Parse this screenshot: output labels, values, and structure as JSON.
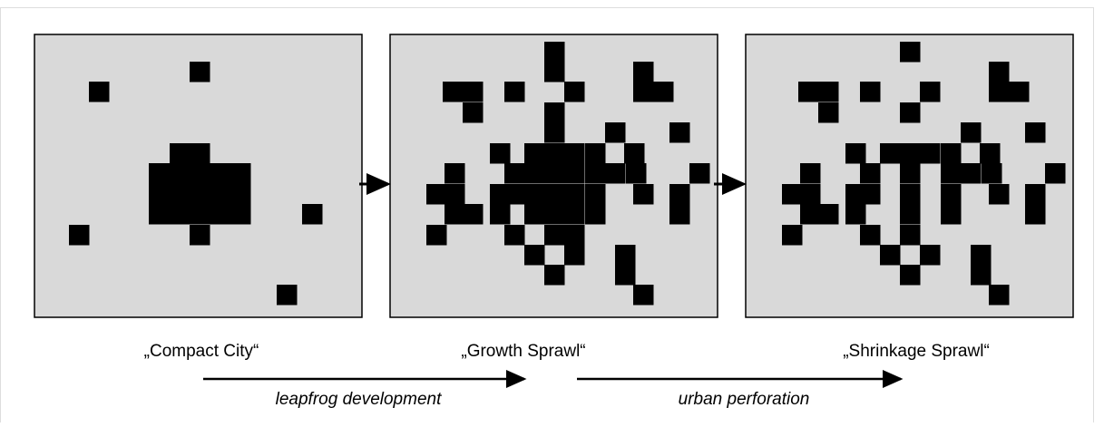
{
  "stages": [
    "„Compact City“",
    "„Growth Sprawl“",
    "„Shrinkage Sprawl“"
  ],
  "processes": [
    "leapfrog development",
    "urban perforation"
  ]
}
